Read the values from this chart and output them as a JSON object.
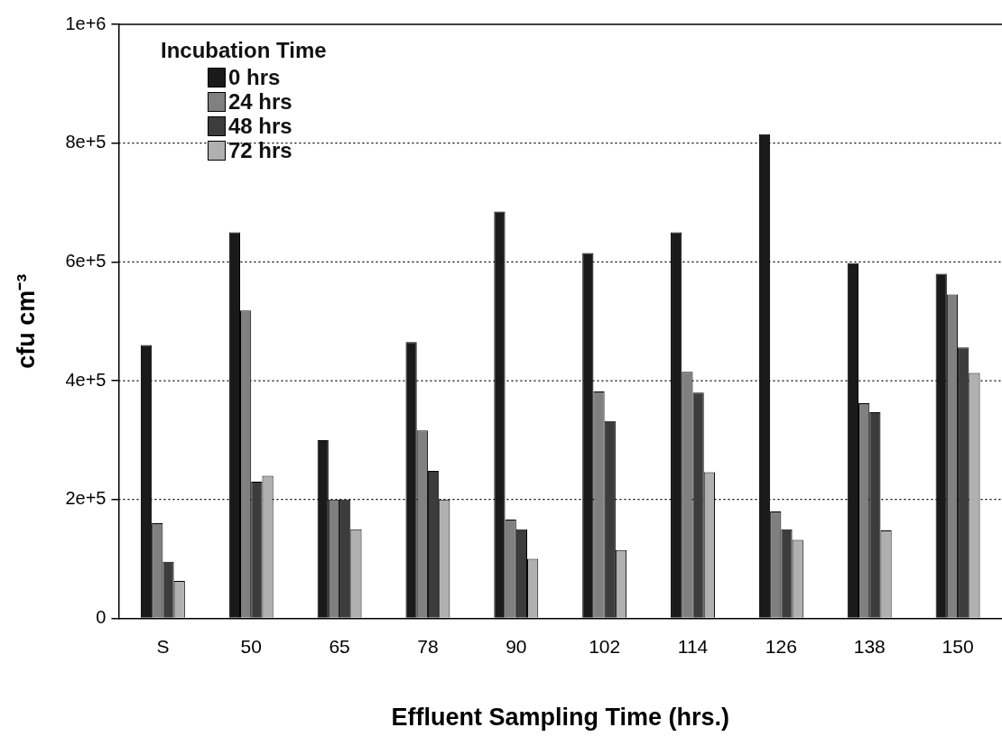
{
  "chart_data": {
    "type": "bar",
    "xlabel": "Effluent Sampling Time (hrs.)",
    "ylabel": "cfu cm⁻³",
    "legend_title": "Incubation Time",
    "categories": [
      "S",
      "50",
      "65",
      "78",
      "90",
      "102",
      "114",
      "126",
      "138",
      "150"
    ],
    "series": [
      {
        "name": "0 hrs",
        "color": "#1a1a1a",
        "values": [
          460000,
          650000,
          300000,
          465000,
          685000,
          615000,
          650000,
          815000,
          598000,
          580000
        ]
      },
      {
        "name": "24 hrs",
        "color": "#808080",
        "values": [
          160000,
          518000,
          200000,
          316000,
          166000,
          382000,
          415000,
          180000,
          362000,
          545000
        ]
      },
      {
        "name": "48 hrs",
        "color": "#3c3c3c",
        "values": [
          95000,
          230000,
          200000,
          248000,
          150000,
          332000,
          380000,
          150000,
          347000,
          456000
        ]
      },
      {
        "name": "72 hrs",
        "color": "#b0b0b0",
        "values": [
          63000,
          240000,
          150000,
          200000,
          100000,
          115000,
          246000,
          132000,
          148000,
          413000
        ]
      }
    ],
    "ylim": [
      0,
      1000000
    ],
    "yticks": [
      {
        "value": 0,
        "label": "0"
      },
      {
        "value": 200000,
        "label": "2e+5"
      },
      {
        "value": 400000,
        "label": "4e+5"
      },
      {
        "value": 600000,
        "label": "6e+5"
      },
      {
        "value": 800000,
        "label": "8e+5"
      },
      {
        "value": 1000000,
        "label": "1e+6"
      }
    ],
    "grid": "y",
    "legend": "top left"
  }
}
